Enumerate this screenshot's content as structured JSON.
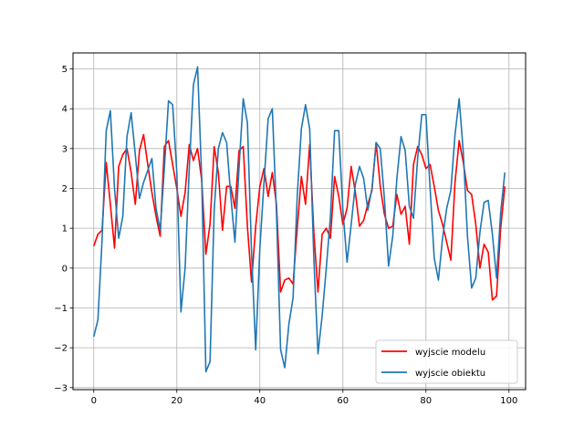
{
  "chart_data": {
    "type": "line",
    "grid": true,
    "legend_position": "bottom-right",
    "xlim": [
      -5,
      104
    ],
    "ylim": [
      -3.05,
      5.4
    ],
    "x_ticks": [
      0,
      20,
      40,
      60,
      80,
      100
    ],
    "y_ticks": [
      -3,
      -2,
      -1,
      0,
      1,
      2,
      3,
      4,
      5
    ],
    "x_tick_labels": [
      "0",
      "20",
      "40",
      "60",
      "80",
      "100"
    ],
    "y_tick_labels": [
      "−3",
      "−2",
      "−1",
      "0",
      "1",
      "2",
      "3",
      "4",
      "5"
    ],
    "series": [
      {
        "name": "wyjscie modelu",
        "color": "#ff0000",
        "values": [
          0.55,
          0.85,
          0.95,
          2.65,
          1.6,
          0.5,
          2.55,
          2.85,
          3.0,
          2.4,
          1.6,
          2.95,
          3.35,
          2.6,
          1.9,
          1.3,
          0.8,
          3.05,
          3.2,
          2.6,
          2.0,
          1.3,
          1.9,
          3.1,
          2.7,
          3.0,
          2.2,
          0.35,
          1.1,
          3.05,
          2.4,
          0.95,
          2.05,
          2.05,
          1.5,
          2.95,
          3.05,
          1.05,
          -0.35,
          1.05,
          2.05,
          2.5,
          1.8,
          2.4,
          1.6,
          -0.6,
          -0.3,
          -0.25,
          -0.4,
          1.0,
          2.3,
          1.6,
          3.1,
          0.9,
          -0.6,
          0.85,
          1.0,
          0.75,
          2.3,
          1.8,
          1.1,
          1.5,
          2.55,
          1.9,
          1.05,
          1.2,
          1.6,
          1.95,
          3.15,
          2.05,
          1.35,
          1.0,
          1.05,
          1.85,
          1.35,
          1.55,
          0.6,
          2.6,
          3.05,
          2.85,
          2.5,
          2.6,
          2.05,
          1.45,
          1.1,
          0.65,
          0.2,
          2.15,
          3.2,
          2.65,
          1.95,
          1.85,
          1.1,
          0.0,
          0.6,
          0.4,
          -0.8,
          -0.7,
          1.0,
          2.05
        ]
      },
      {
        "name": "wyjscie obiektu",
        "color": "#1f77b4",
        "values": [
          -1.72,
          -1.3,
          0.7,
          3.45,
          3.95,
          2.0,
          0.75,
          1.3,
          3.3,
          3.9,
          2.85,
          1.75,
          2.15,
          2.45,
          2.75,
          1.5,
          0.95,
          2.5,
          4.2,
          4.1,
          2.4,
          -1.1,
          0.0,
          2.5,
          4.6,
          5.05,
          2.25,
          -2.6,
          -2.35,
          1.45,
          3.0,
          3.4,
          3.15,
          1.8,
          0.65,
          2.55,
          4.25,
          3.65,
          0.4,
          -2.05,
          0.5,
          2.15,
          3.75,
          4.0,
          1.4,
          -2.05,
          -2.5,
          -1.4,
          -0.75,
          1.8,
          3.5,
          4.1,
          3.5,
          0.25,
          -2.15,
          -1.2,
          0.0,
          1.3,
          3.45,
          3.45,
          1.45,
          0.15,
          1.1,
          2.1,
          2.55,
          2.25,
          1.45,
          2.0,
          3.15,
          3.0,
          1.75,
          0.05,
          0.8,
          2.25,
          3.3,
          2.95,
          1.55,
          1.25,
          2.75,
          3.85,
          3.85,
          2.0,
          0.25,
          -0.3,
          0.75,
          1.5,
          1.95,
          3.35,
          4.25,
          2.9,
          0.8,
          -0.5,
          -0.25,
          0.9,
          1.65,
          1.7,
          0.85,
          -0.25,
          1.4,
          2.4
        ]
      }
    ]
  }
}
